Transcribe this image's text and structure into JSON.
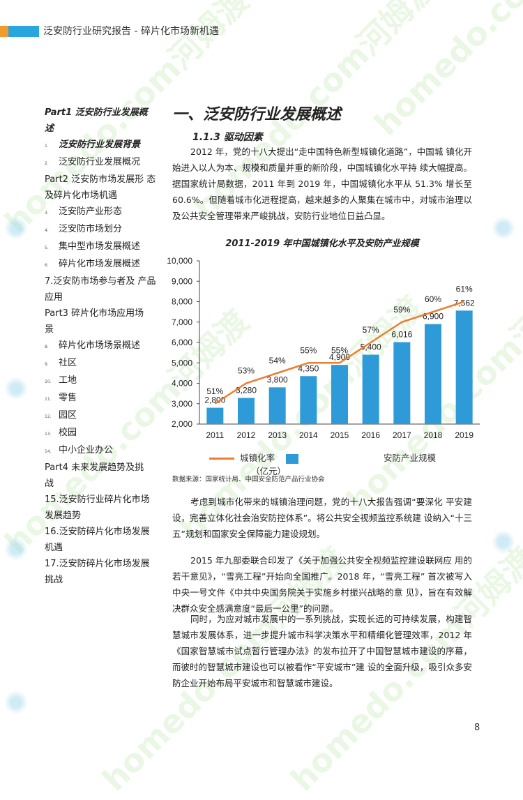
{
  "header": {
    "title": "泛安防行业研究报告 - 碎片化市场新机遇"
  },
  "watermark": {
    "text": "homedo.com河姆渡"
  },
  "toc": [
    {
      "num": "",
      "text": "Part1  泛安防行业发展概 述",
      "style": "part-bold"
    },
    {
      "num": "1.",
      "text": "泛安防行业发展背景",
      "style": "bold"
    },
    {
      "num": "2.",
      "text": "泛安防行业发展概况",
      "style": ""
    },
    {
      "num": "",
      "text": "Part2  泛安防市场发展形 态及碎片化市场机遇",
      "style": "part"
    },
    {
      "num": "3.",
      "text": "泛安防产业形态",
      "style": ""
    },
    {
      "num": "4.",
      "text": "泛安防市场划分",
      "style": ""
    },
    {
      "num": "5.",
      "text": "集中型市场发展概述",
      "style": ""
    },
    {
      "num": "6.",
      "text": "碎片化市场发展概述",
      "style": ""
    },
    {
      "num": "",
      "text": "7.泛安防市场参与者及 产品应用",
      "style": "part"
    },
    {
      "num": "",
      "text": "Part3  碎片化市场应用场",
      "style": "part"
    },
    {
      "num": "",
      "text": "景",
      "style": "part"
    },
    {
      "num": "8.",
      "text": "碎片化市场场景概述",
      "style": ""
    },
    {
      "num": "9.",
      "text": "社区",
      "style": ""
    },
    {
      "num": "10.",
      "text": "工地",
      "style": ""
    },
    {
      "num": "11.",
      "text": "零售",
      "style": ""
    },
    {
      "num": "12.",
      "text": "园区",
      "style": ""
    },
    {
      "num": "13.",
      "text": "校园",
      "style": ""
    },
    {
      "num": "14.",
      "text": "中小企业办公",
      "style": ""
    },
    {
      "num": "",
      "text": "Part4  未来发展趋势及挑",
      "style": "part"
    },
    {
      "num": "",
      "text": "战",
      "style": "part"
    },
    {
      "num": "",
      "text": "15.泛安防行业碎片化市场发展趋势",
      "style": "part"
    },
    {
      "num": "",
      "text": "16.泛安防碎片化市场发展机遇",
      "style": "part"
    },
    {
      "num": "",
      "text": "17.泛安防碎片化市场发展挑战",
      "style": "part"
    }
  ],
  "section": {
    "title": "一、泛安防行业发展概述",
    "subtitle": "1.1.3  驱动因素"
  },
  "paragraphs": {
    "p1": "2012 年，党的十八大提出“走中国特色新型城镇化道路”，中国城 镇化开始进入以人为本、规模和质量并重的新阶段，中国城镇化水平持 续大幅提高。据国家统计局数据，2011 年到 2019 年，中国城镇化水平从 51.3% 增长至 60.6%。但随着城市化进程提高，越来越多的人聚集在城市中，对城市治理以及公共安全管理带来严峻挑战，安防行业地位日益凸显。",
    "p2": "考虑到城市化带来的城镇治理问题，党的十八大报告强调“要深化 平安建设，完善立体化社会治安防控体系”。将公共安全视频监控系统建 设纳入“十三五”规划和国家安全保障能力建设规划。",
    "p3": "2015 年九部委联合印发了《关于加强公共安全视频监控建设联网应 用的若干意见》，“雪亮工程”开始向全国推广。2018 年，“雪亮工程” 首次被写入中央一号文件《中共中央国务院关于实施乡村振兴战略的意 见》，旨在有效解决群众安全感满意度“最后一公里”的问题。",
    "p4": "同时，为应对城市发展中的一系列挑战，实现长远的可持续发展，构建智慧城市发展体系，进一步提升城市科学决策水平和精细化管理效率，2012 年《国家智慧城市试点暂行管理办法》的发布拉开了中国智慧城市建设的序幕，而彼时的智慧城市建设也可以被看作“平安城市”建 设的全面升级，吸引众多安防企业开始布局平安城市和智慧城市建设。"
  },
  "chart_data": {
    "type": "bar",
    "title": "2011-2019 年中国城镇化水平及安防产业规模",
    "categories": [
      "2011",
      "2012",
      "2013",
      "2014",
      "2015",
      "2016",
      "2017",
      "2018",
      "2019"
    ],
    "series": [
      {
        "name": "安防产业规模（亿元）",
        "type": "bar",
        "values": [
          2800,
          3280,
          3800,
          4350,
          4900,
          5400,
          6016,
          6900,
          7562
        ],
        "labels": [
          "2,800",
          "3,280",
          "3,800",
          "4,350",
          "4,900",
          "5,400",
          "6,016",
          "6,900",
          "7,562"
        ],
        "color": "#2e9ad8"
      },
      {
        "name": "城镇化率",
        "type": "line",
        "values": [
          51,
          53,
          54,
          55,
          55,
          57,
          59,
          60,
          61
        ],
        "labels": [
          "51%",
          "53%",
          "54%",
          "55%",
          "55%",
          "57%",
          "59%",
          "60%",
          "61%"
        ],
        "color": "#ed7d31"
      }
    ],
    "ylim": [
      2000,
      10000
    ],
    "yticks": [
      "2,000",
      "3,000",
      "4,000",
      "5,000",
      "6,000",
      "7,000",
      "8,000",
      "9,000",
      "10,000"
    ],
    "line_range": [
      49,
      65
    ],
    "grid": false,
    "legend": {
      "line_label": "城镇化率",
      "bar_label_1": "安防产业规模",
      "bar_label_2": "（亿元）",
      "placement": "bottom"
    }
  },
  "source": "数据来源：国家统计局、中国安全防范产品行业协会",
  "page_number": "8"
}
